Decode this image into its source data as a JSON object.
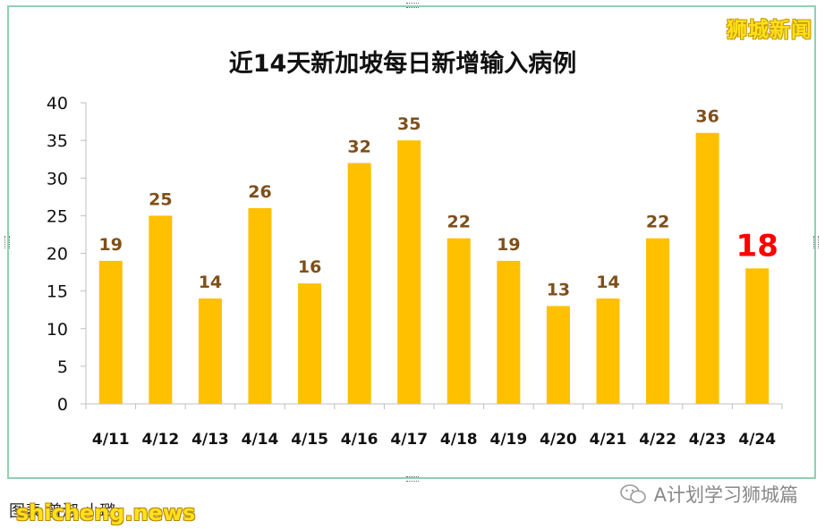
{
  "watermark_top": "狮城新闻",
  "footer": {
    "source_text": "图表  曾淑  小璐",
    "site": "shicheng.news",
    "account": "A计划学习狮城篇",
    "icon": "wechat-icon"
  },
  "colors": {
    "bar": "#ffc000",
    "value_label": "#7f4f1a",
    "highlight_label": "#ff0000",
    "frame": "#8fd1b2"
  },
  "chart_data": {
    "type": "bar",
    "title": "近14天新加坡每日新增输入病例",
    "categories": [
      "4/11",
      "4/12",
      "4/13",
      "4/14",
      "4/15",
      "4/16",
      "4/17",
      "4/18",
      "4/19",
      "4/20",
      "4/21",
      "4/22",
      "4/23",
      "4/24"
    ],
    "values": [
      19,
      25,
      14,
      26,
      16,
      32,
      35,
      22,
      19,
      13,
      14,
      22,
      36,
      18
    ],
    "data_labels": [
      "19",
      "25",
      "14",
      "26",
      "16",
      "32",
      "35",
      "22",
      "19",
      "13",
      "14",
      "22",
      "36",
      "18"
    ],
    "highlight_index": 13,
    "ylim": [
      0,
      40
    ],
    "yticks": [
      "0",
      "5",
      "10",
      "15",
      "20",
      "25",
      "30",
      "35",
      "40"
    ],
    "xlabel": "",
    "ylabel": "",
    "grid": false,
    "legend": "none"
  }
}
